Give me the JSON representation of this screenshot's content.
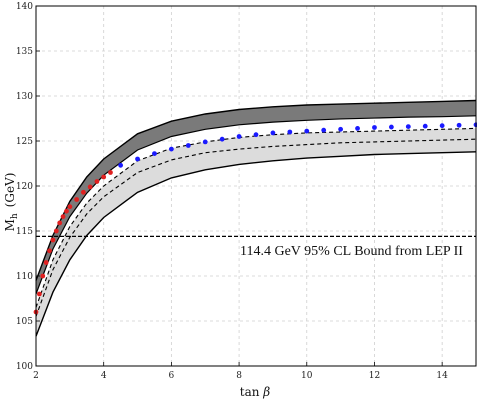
{
  "chart_data": {
    "type": "scatter",
    "title": "",
    "xlabel_main": "tan ",
    "xlabel_greek": "β",
    "ylabel_main": "M",
    "ylabel_sub": "h",
    "ylabel_unit": "(GeV)",
    "xlim": [
      2,
      15
    ],
    "ylim": [
      100,
      140
    ],
    "x_ticks": [
      2,
      4,
      6,
      8,
      10,
      12,
      14
    ],
    "y_ticks": [
      100,
      105,
      110,
      115,
      120,
      125,
      130,
      135,
      140
    ],
    "grid": true,
    "colors": {
      "dark_band": "#7a7a7a",
      "light_band": "#dcdcdc",
      "red_points": "#e02020",
      "blue_points": "#1a1aff",
      "lines": "#000000"
    },
    "bands": {
      "x": [
        2,
        2.5,
        3,
        3.5,
        4,
        5,
        6,
        7,
        8,
        9,
        10,
        11,
        12,
        13,
        14,
        15
      ],
      "upper_outer": [
        109.5,
        114.5,
        118.3,
        121.0,
        123.0,
        125.8,
        127.2,
        128.0,
        128.5,
        128.8,
        129.0,
        129.1,
        129.2,
        129.3,
        129.4,
        129.5
      ],
      "upper_middle": [
        108.0,
        113.0,
        116.6,
        119.2,
        121.2,
        124.0,
        125.5,
        126.3,
        126.8,
        127.1,
        127.3,
        127.45,
        127.55,
        127.65,
        127.7,
        127.8
      ],
      "central_dashed": [
        106.5,
        111.8,
        115.5,
        118.1,
        120.0,
        122.8,
        124.2,
        124.9,
        125.4,
        125.7,
        125.9,
        126.0,
        126.1,
        126.2,
        126.3,
        126.4
      ],
      "lower_dashed": [
        105.5,
        110.7,
        114.3,
        116.9,
        118.8,
        121.5,
        122.9,
        123.7,
        124.1,
        124.4,
        124.6,
        124.8,
        124.9,
        125.0,
        125.1,
        125.2
      ],
      "lower_outer": [
        103.3,
        108.2,
        111.8,
        114.5,
        116.5,
        119.3,
        120.9,
        121.8,
        122.4,
        122.8,
        123.1,
        123.3,
        123.5,
        123.6,
        123.7,
        123.8
      ]
    },
    "series": [
      {
        "color": "red",
        "x": [
          2.0,
          2.1,
          2.2,
          2.3,
          2.4,
          2.5,
          2.6,
          2.7,
          2.8,
          2.9,
          3.0,
          3.2,
          3.4,
          3.6,
          3.8,
          4.0,
          4.2
        ],
        "y": [
          106.0,
          108.0,
          110.0,
          111.5,
          112.8,
          114.0,
          115.0,
          115.9,
          116.6,
          117.2,
          117.7,
          118.5,
          119.3,
          119.9,
          120.5,
          121.0,
          121.5
        ]
      },
      {
        "color": "blue",
        "x": [
          4.5,
          5.0,
          5.5,
          6.0,
          6.5,
          7.0,
          7.5,
          8.0,
          8.5,
          9.0,
          9.5,
          10.0,
          10.5,
          11.0,
          11.5,
          12.0,
          12.5,
          13.0,
          13.5,
          14.0,
          14.5,
          15.0
        ],
        "y": [
          122.3,
          123.0,
          123.6,
          124.1,
          124.5,
          124.9,
          125.2,
          125.5,
          125.7,
          125.9,
          126.0,
          126.1,
          126.2,
          126.3,
          126.4,
          126.5,
          126.55,
          126.6,
          126.65,
          126.7,
          126.75,
          126.8
        ]
      }
    ],
    "reference_line": {
      "y": 114.4,
      "label": "114.4 GeV 95% CL Bound from LEP II"
    }
  }
}
